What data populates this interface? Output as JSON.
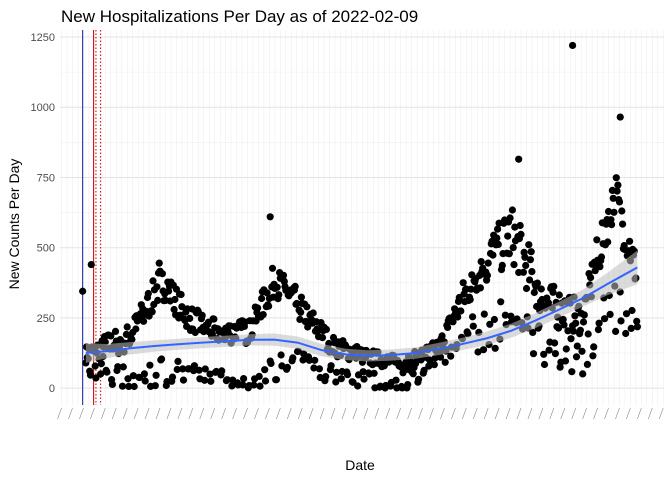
{
  "chart_data": {
    "type": "scatter",
    "title": "New Hospitalizations Per Day as of 2022-02-09",
    "xlabel": "Date",
    "ylabel": "New Counts Per Day",
    "xlim": [
      "2020-02-01",
      "2022-03-15"
    ],
    "ylim": [
      -60,
      1275
    ],
    "yticks": [
      0,
      250,
      500,
      750,
      1000,
      1250
    ],
    "grid": true,
    "legend": "none",
    "colors": {
      "points": "#000000",
      "smooth": "#3366ff",
      "band": "#bdbdbd",
      "vline_solid": "#1a1aa6",
      "vline_red": "#cc0000"
    },
    "vlines": [
      {
        "date": "2020-03-01",
        "color": "#1a1aa6",
        "style": "solid"
      },
      {
        "date": "2020-03-15",
        "color": "#cc0000",
        "style": "solid"
      },
      {
        "date": "2020-03-18",
        "color": "#cc0000",
        "style": "dotted"
      },
      {
        "date": "2020-03-24",
        "color": "#cc0000",
        "style": "dotted"
      }
    ],
    "key_points": [
      {
        "date": "2020-03-01",
        "value": 345
      },
      {
        "date": "2020-03-12",
        "value": 440
      },
      {
        "date": "2020-06-07",
        "value": 445
      },
      {
        "date": "2020-10-27",
        "value": 610
      },
      {
        "date": "2021-09-10",
        "value": 815
      },
      {
        "date": "2021-11-18",
        "value": 1220
      },
      {
        "date": "2022-01-18",
        "value": 965
      }
    ],
    "smooth": {
      "x": [
        "2020-03-05",
        "2020-04-01",
        "2020-05-01",
        "2020-06-01",
        "2020-07-01",
        "2020-08-01",
        "2020-09-01",
        "2020-10-01",
        "2020-11-01",
        "2020-12-01",
        "2021-01-01",
        "2021-02-01",
        "2021-03-01",
        "2021-04-01",
        "2021-05-01",
        "2021-06-01",
        "2021-07-01",
        "2021-08-01",
        "2021-09-01",
        "2021-10-01",
        "2021-11-01",
        "2021-12-01",
        "2022-01-01",
        "2022-02-09"
      ],
      "y": [
        125,
        132,
        142,
        150,
        156,
        162,
        167,
        172,
        173,
        162,
        135,
        120,
        115,
        118,
        125,
        140,
        158,
        178,
        205,
        240,
        280,
        320,
        370,
        430
      ],
      "band": [
        35,
        25,
        22,
        20,
        20,
        20,
        20,
        20,
        22,
        22,
        22,
        20,
        20,
        20,
        20,
        22,
        22,
        24,
        25,
        27,
        28,
        30,
        40,
        60
      ]
    },
    "series": {
      "bands": [
        {
          "x": "2020-03-05",
          "hi": 120,
          "lo": 60,
          "spread": 30
        },
        {
          "x": "2020-04-01",
          "hi": 150,
          "lo": 50,
          "spread": 45
        },
        {
          "x": "2020-05-01",
          "hi": 180,
          "lo": 30,
          "spread": 50
        },
        {
          "x": "2020-06-10",
          "hi": 380,
          "lo": 55,
          "spread": 60
        },
        {
          "x": "2020-07-15",
          "hi": 250,
          "lo": 50,
          "spread": 45
        },
        {
          "x": "2020-08-20",
          "hi": 200,
          "lo": 25,
          "spread": 40
        },
        {
          "x": "2020-10-01",
          "hi": 200,
          "lo": 25,
          "spread": 45
        },
        {
          "x": "2020-11-01",
          "hi": 380,
          "lo": 90,
          "spread": 60
        },
        {
          "x": "2020-12-01",
          "hi": 300,
          "lo": 80,
          "spread": 55
        },
        {
          "x": "2021-01-15",
          "hi": 150,
          "lo": 50,
          "spread": 35
        },
        {
          "x": "2021-03-01",
          "hi": 110,
          "lo": 30,
          "spread": 30
        },
        {
          "x": "2021-04-15",
          "hi": 80,
          "lo": 5,
          "spread": 30
        },
        {
          "x": "2021-06-01",
          "hi": 150,
          "lo": 110,
          "spread": 25
        },
        {
          "x": "2021-07-15",
          "hi": 400,
          "lo": 200,
          "spread": 80
        },
        {
          "x": "2021-09-01",
          "hi": 550,
          "lo": 220,
          "spread": 100
        },
        {
          "x": "2021-10-15",
          "hi": 300,
          "lo": 150,
          "spread": 80
        },
        {
          "x": "2021-12-01",
          "hi": 250,
          "lo": 100,
          "spread": 60
        },
        {
          "x": "2022-01-10",
          "hi": 700,
          "lo": 300,
          "spread": 100
        },
        {
          "x": "2022-02-09",
          "hi": 400,
          "lo": 230,
          "spread": 60
        }
      ]
    },
    "xtick_note": "x-axis tick labels are dense, rotated and illegible in the original"
  }
}
